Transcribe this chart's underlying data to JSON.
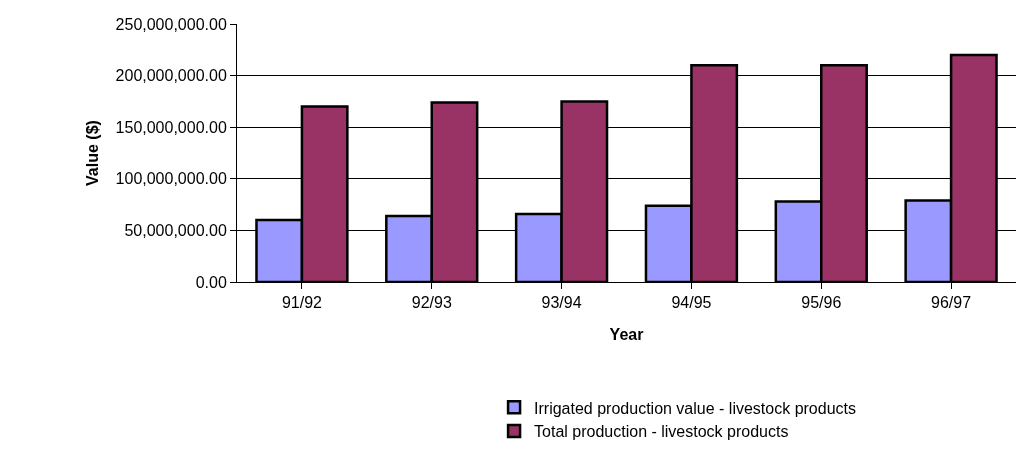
{
  "chart_data": {
    "type": "bar",
    "xlabel": "Year",
    "ylabel": "Value ($)",
    "categories": [
      "91/92",
      "92/93",
      "93/94",
      "94/95",
      "95/96",
      "96/97"
    ],
    "series": [
      {
        "name": "Irrigated production value - livestock products",
        "color": "#9999ff",
        "values": [
          60000000,
          64000000,
          66000000,
          74000000,
          78000000,
          79000000
        ]
      },
      {
        "name": "Total production - livestock products",
        "color": "#993366",
        "values": [
          170000000,
          174000000,
          175000000,
          210000000,
          210000000,
          220000000
        ]
      }
    ],
    "ylim": [
      0,
      250000000
    ],
    "yticks": [
      {
        "value": 0,
        "label": "0.00"
      },
      {
        "value": 50000000,
        "label": "50,000,000.00"
      },
      {
        "value": 100000000,
        "label": "100,000,000.00"
      },
      {
        "value": 150000000,
        "label": "150,000,000.00"
      },
      {
        "value": 200000000,
        "label": "200,000,000.00"
      },
      {
        "value": 250000000,
        "label": "250,000,000.00"
      }
    ],
    "grid": "y",
    "legend": "bottom"
  }
}
